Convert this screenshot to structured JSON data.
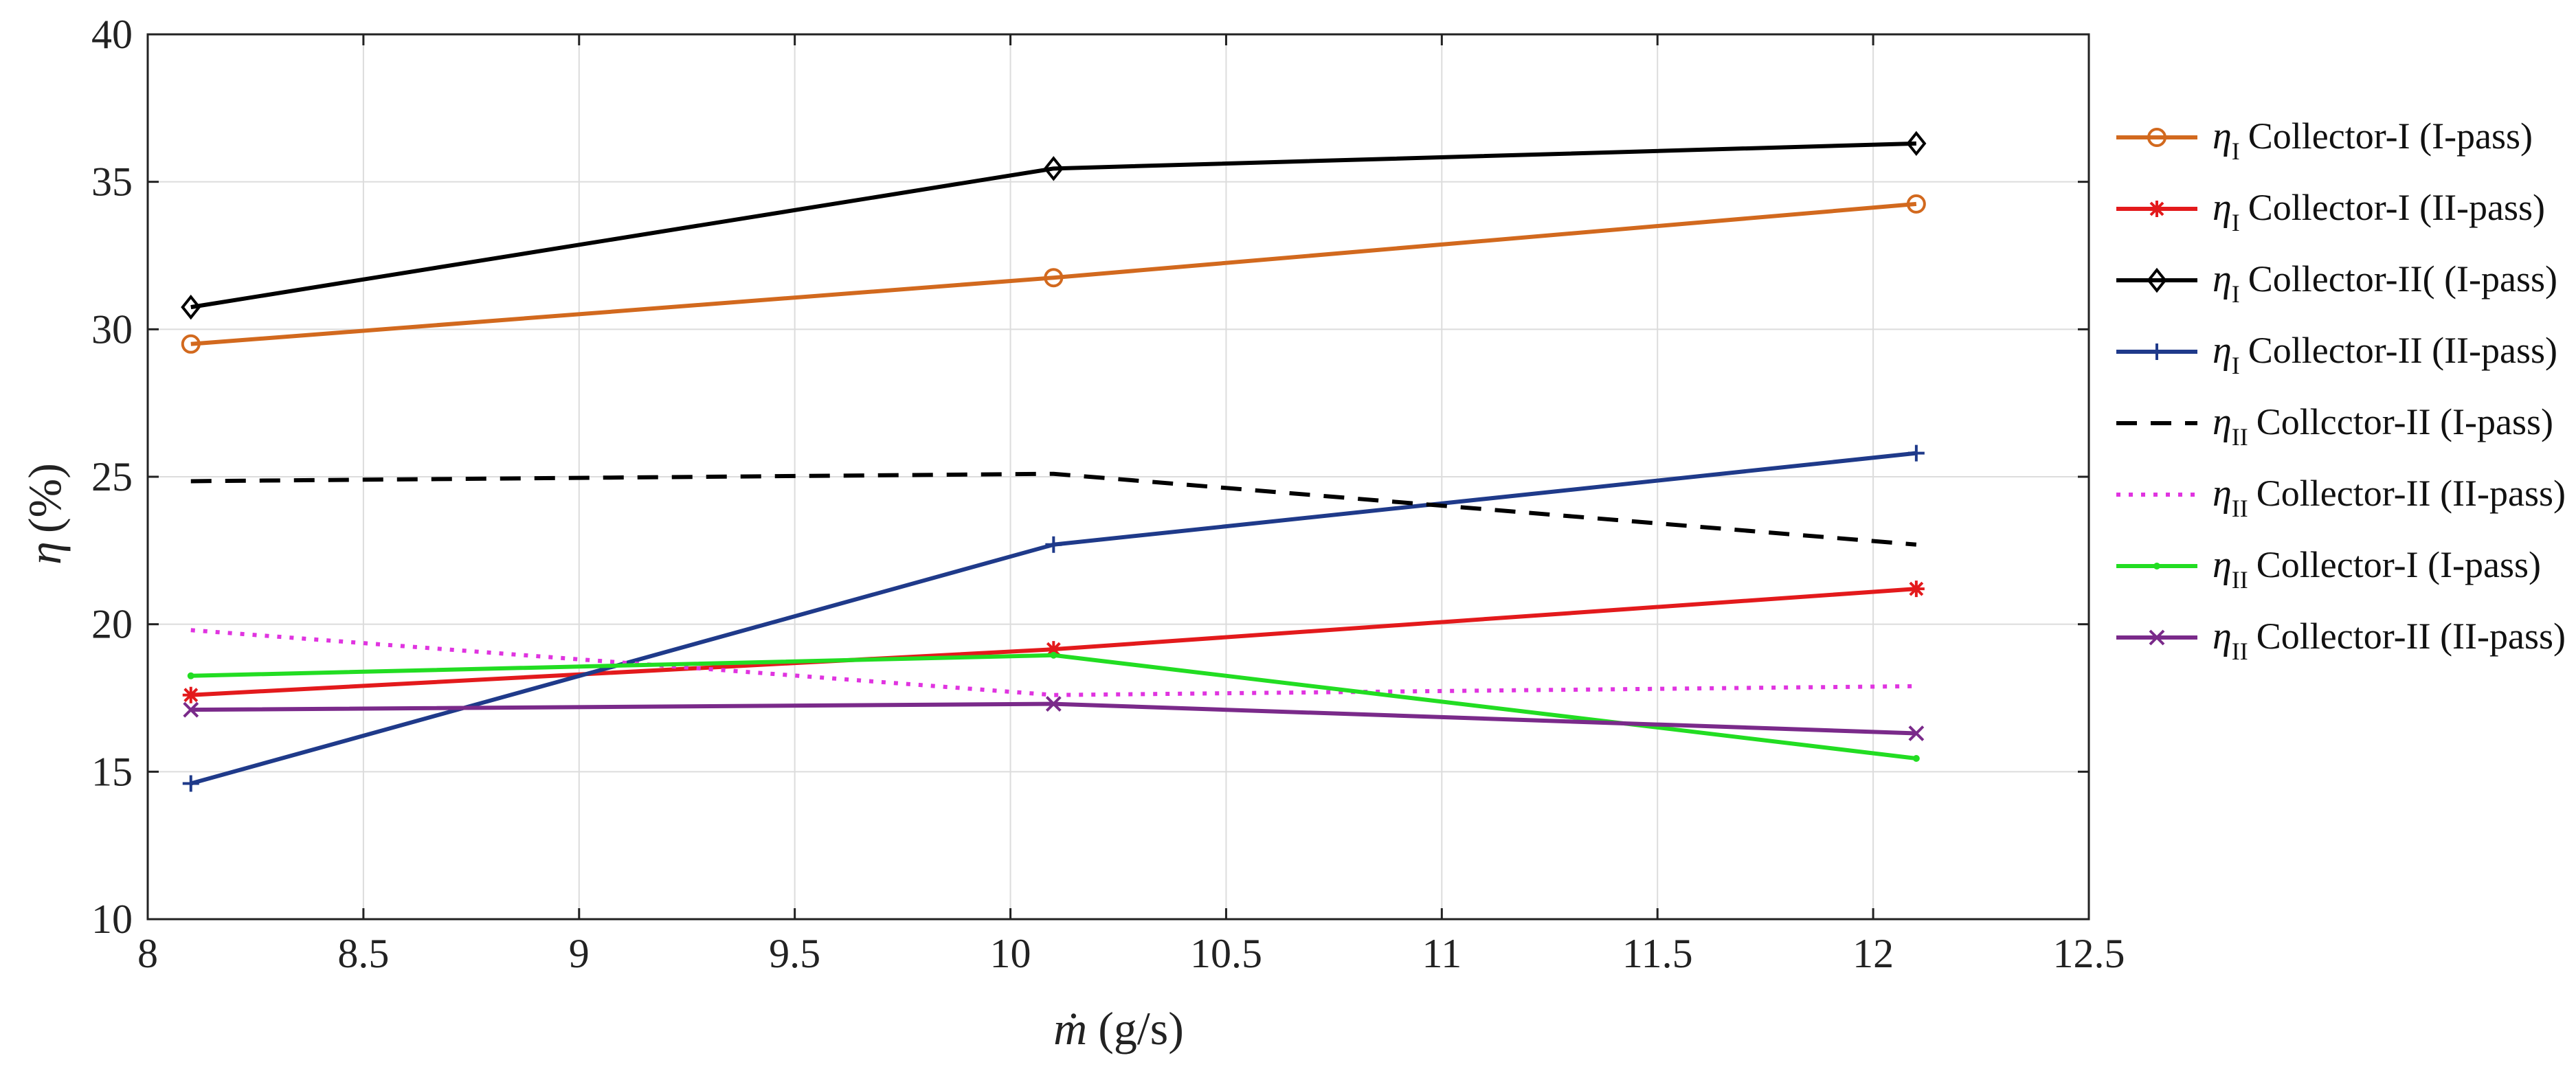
{
  "chart_data": {
    "type": "line",
    "title": "",
    "xlabel": {
      "symbol": "ṁ",
      "unit": "(g/s)"
    },
    "ylabel": {
      "symbol": "η",
      "unit": "(%)"
    },
    "xlim": [
      8,
      12.5
    ],
    "ylim": [
      10,
      40
    ],
    "xticks": [
      "8",
      "8.5",
      "9",
      "9.5",
      "10",
      "10.5",
      "11",
      "11.5",
      "12",
      "12.5"
    ],
    "yticks": [
      "10",
      "15",
      "20",
      "25",
      "30",
      "35",
      "40"
    ],
    "grid": true,
    "legend_position": "outside-right",
    "x": [
      8.1,
      10.1,
      12.1
    ],
    "series": [
      {
        "symbol": "η",
        "sub": "I",
        "label": "Collector-I (I-pass)",
        "color": "#d2691e",
        "dash": "solid",
        "marker": "circle",
        "values": [
          29.5,
          31.75,
          34.25
        ]
      },
      {
        "symbol": "η",
        "sub": "I",
        "label": "Collector-I (II-pass)",
        "color": "#e31a1c",
        "dash": "solid",
        "marker": "star",
        "values": [
          17.6,
          19.15,
          21.2
        ]
      },
      {
        "symbol": "η",
        "sub": "I",
        "label": "Collector-II( (I-pass)",
        "color": "#000000",
        "dash": "solid",
        "marker": "diamond",
        "values": [
          30.75,
          35.45,
          36.3
        ]
      },
      {
        "symbol": "η",
        "sub": "I",
        "label": "Collector-II (II-pass)",
        "color": "#1f3a8a",
        "dash": "solid",
        "marker": "plus",
        "values": [
          14.6,
          22.7,
          25.8
        ]
      },
      {
        "symbol": "η",
        "sub": "II",
        "label": "Collcctor-II (I-pass)",
        "color": "#000000",
        "dash": "dashed",
        "marker": "none",
        "values": [
          24.85,
          25.1,
          22.7
        ]
      },
      {
        "symbol": "η",
        "sub": "II",
        "label": "Collector-II (II-pass)",
        "color": "#e034e0",
        "dash": "dotted",
        "marker": "none",
        "values": [
          19.8,
          17.6,
          17.9
        ]
      },
      {
        "symbol": "η",
        "sub": "II",
        "label": "Collector-I (I-pass)",
        "color": "#22dd22",
        "dash": "solid",
        "marker": "dot",
        "values": [
          18.25,
          18.95,
          15.45
        ]
      },
      {
        "symbol": "η",
        "sub": "II",
        "label": "Collector-II (II-pass)",
        "color": "#7a2a8a",
        "dash": "solid",
        "marker": "cross",
        "values": [
          17.1,
          17.3,
          16.3
        ]
      }
    ]
  }
}
